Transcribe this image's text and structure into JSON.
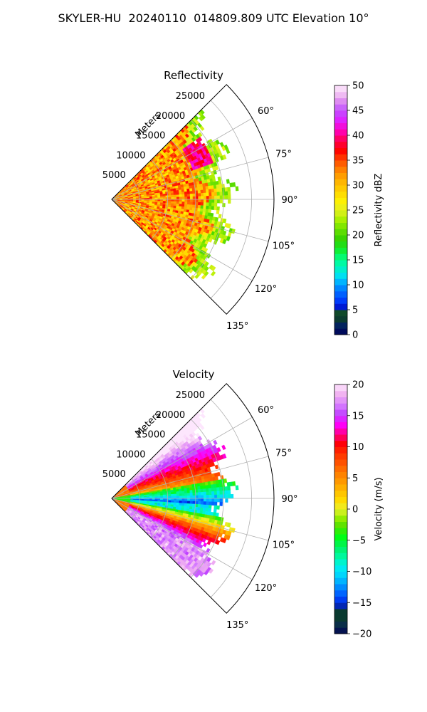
{
  "figure": {
    "title": "SKYLER-HU  20240110  014809.809 UTC Elevation 10°"
  },
  "chart_data": [
    {
      "type": "polar-sector",
      "title": "Reflectivity",
      "radial_label": "Meters",
      "radial_ticks": [
        "5000",
        "10000",
        "15000",
        "20000",
        "25000"
      ],
      "radial_tick_values": [
        5000,
        10000,
        15000,
        20000,
        25000
      ],
      "rmax": 29000,
      "angle_ticks": [
        "60°",
        "75°",
        "90°",
        "105°",
        "120°",
        "135°"
      ],
      "angle_tick_values": [
        60,
        75,
        90,
        105,
        120,
        135
      ],
      "angle_range": [
        45,
        135
      ],
      "grid": true,
      "colorbar": {
        "label": "Reflectivity dBZ",
        "ticks": [
          "0",
          "5",
          "10",
          "15",
          "20",
          "25",
          "30",
          "35",
          "40",
          "45",
          "50"
        ],
        "range": [
          0,
          50
        ]
      }
    },
    {
      "type": "polar-sector",
      "title": "Velocity",
      "radial_label": "Meters",
      "radial_ticks": [
        "5000",
        "10000",
        "15000",
        "20000",
        "25000"
      ],
      "radial_tick_values": [
        5000,
        10000,
        15000,
        20000,
        25000
      ],
      "rmax": 29000,
      "angle_ticks": [
        "60°",
        "75°",
        "90°",
        "105°",
        "120°",
        "135°"
      ],
      "angle_tick_values": [
        60,
        75,
        90,
        105,
        120,
        135
      ],
      "angle_range": [
        45,
        135
      ],
      "grid": true,
      "colorbar": {
        "label": "Velocity (m/s)",
        "ticks": [
          "−20",
          "−15",
          "−10",
          "−5",
          "0",
          "5",
          "10",
          "15",
          "20"
        ],
        "range": [
          -20,
          20
        ]
      }
    }
  ]
}
